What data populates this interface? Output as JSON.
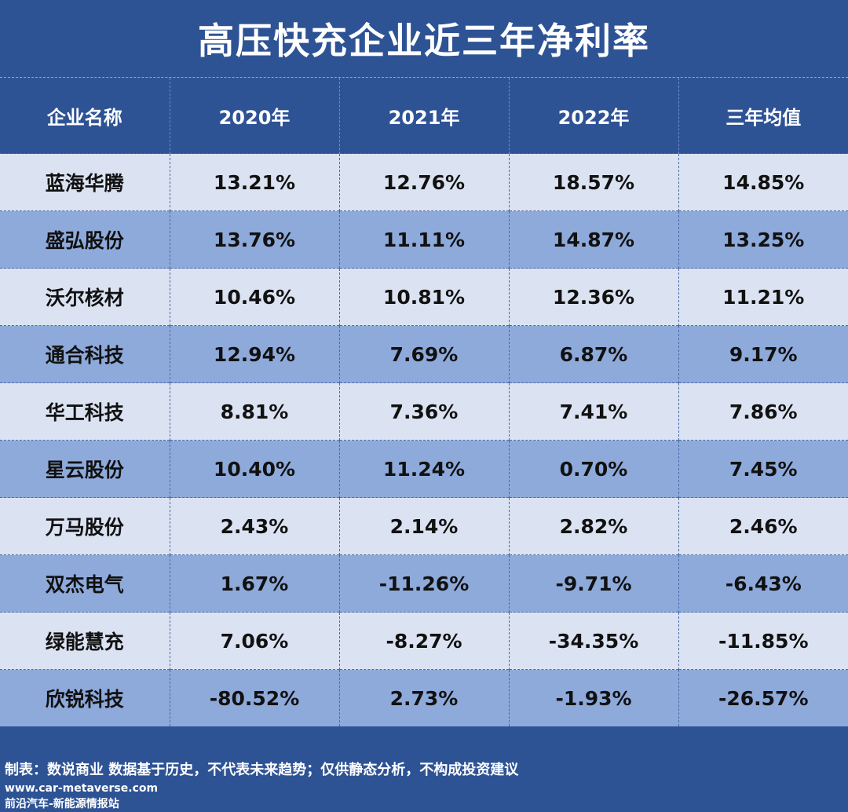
{
  "title": "高压快充企业近三年净利率",
  "table": {
    "headers": [
      "企业名称",
      "2020年",
      "2021年",
      "2022年",
      "三年均值"
    ],
    "rows": [
      [
        "蓝海华腾",
        "13.21%",
        "12.76%",
        "18.57%",
        "14.85%"
      ],
      [
        "盛弘股份",
        "13.76%",
        "11.11%",
        "14.87%",
        "13.25%"
      ],
      [
        "沃尔核材",
        "10.46%",
        "10.81%",
        "12.36%",
        "11.21%"
      ],
      [
        "通合科技",
        "12.94%",
        "7.69%",
        "6.87%",
        "9.17%"
      ],
      [
        "华工科技",
        "8.81%",
        "7.36%",
        "7.41%",
        "7.86%"
      ],
      [
        "星云股份",
        "10.40%",
        "11.24%",
        "0.70%",
        "7.45%"
      ],
      [
        "万马股份",
        "2.43%",
        "2.14%",
        "2.82%",
        "2.46%"
      ],
      [
        "双杰电气",
        "1.67%",
        "-11.26%",
        "-9.71%",
        "-6.43%"
      ],
      [
        "绿能慧充",
        "7.06%",
        "-8.27%",
        "-34.35%",
        "-11.85%"
      ],
      [
        "欣锐科技",
        "-80.52%",
        "2.73%",
        "-1.93%",
        "-26.57%"
      ]
    ]
  },
  "footer": {
    "note": "制表：数说商业 数据基于历史，不代表未来趋势；仅供静态分析，不构成投资建议",
    "url": "www.car-metaverse.com",
    "brand": "前沿汽车-新能源情报站"
  },
  "colors": {
    "background": "#2e5395",
    "row_light": "#dbe3f2",
    "row_dark": "#8eaadb"
  }
}
